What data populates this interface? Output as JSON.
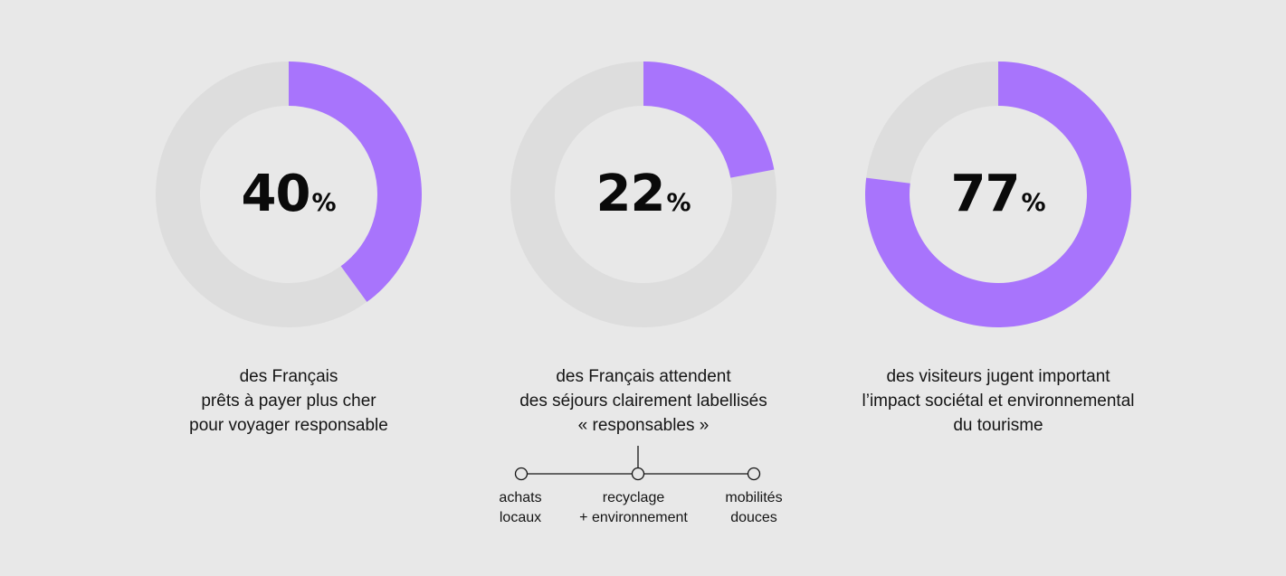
{
  "chart_data": [
    {
      "type": "pie",
      "variant": "donut",
      "value": 40,
      "unit": "%",
      "slices": [
        40,
        60
      ],
      "colors": {
        "filled": "#a874fc",
        "remaining": "#dddddd"
      },
      "caption_lines": [
        "des Français",
        "prêts à payer plus cher",
        "pour voyager responsable"
      ]
    },
    {
      "type": "pie",
      "variant": "donut",
      "value": 22,
      "unit": "%",
      "slices": [
        22,
        78
      ],
      "colors": {
        "filled": "#a874fc",
        "remaining": "#dddddd"
      },
      "caption_lines": [
        "des Français attendent",
        "des séjours clairement labellisés",
        "« responsables »"
      ]
    },
    {
      "type": "pie",
      "variant": "donut",
      "value": 77,
      "unit": "%",
      "slices": [
        77,
        23
      ],
      "colors": {
        "filled": "#a874fc",
        "remaining": "#dddddd"
      },
      "caption_lines": [
        "des visiteurs jugent important",
        "l’impact sociétal et environnemental",
        "du tourisme"
      ]
    }
  ],
  "sub_criteria": [
    {
      "lines": [
        "achats",
        "locaux"
      ]
    },
    {
      "lines": [
        "recyclage",
        "+ environnement"
      ]
    },
    {
      "lines": [
        "mobilités",
        "douces"
      ]
    }
  ],
  "colors": {
    "background": "#e8e8e8",
    "accent": "#a874fc",
    "track": "#dddddd",
    "text": "#151515"
  }
}
